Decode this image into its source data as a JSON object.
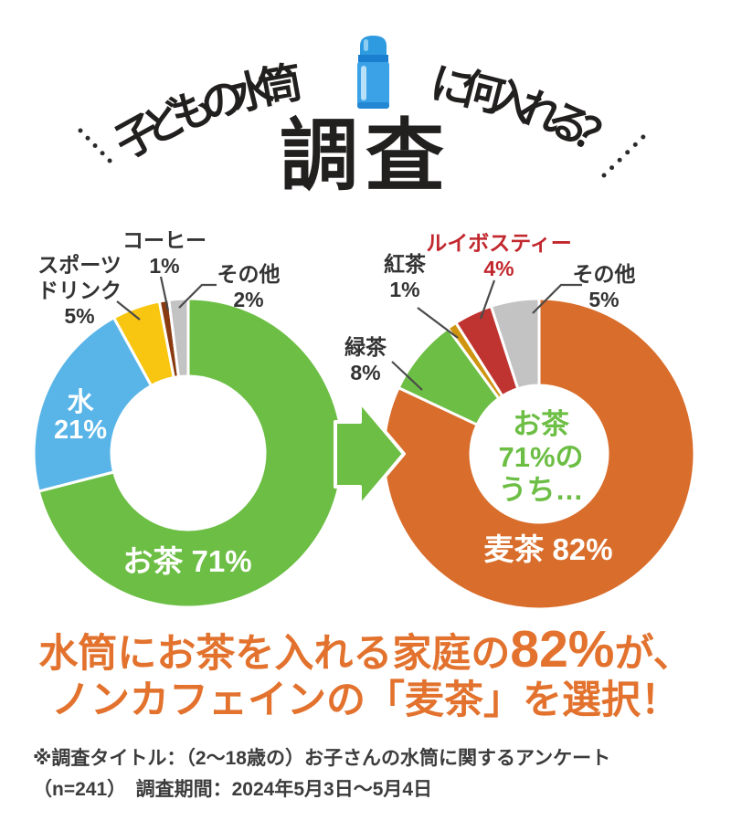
{
  "header": {
    "arc_title_left": "子どもの水筒",
    "arc_title_right": "に何入れる？",
    "bottle_icon": "water-bottle-icon",
    "main_title": "調査"
  },
  "colors": {
    "green": "#6cbe44",
    "blue": "#59b5e8",
    "yellow": "#f8c611",
    "coffee_brown": "#8a3a10",
    "gray": "#c3c3c3",
    "orange": "#d96d2b",
    "gold": "#cf9410",
    "rooibos_red": "#bf3431",
    "rooibos_label": "#c1272d",
    "title_black": "#221f1f",
    "text_dark": "#333333",
    "conclusion_orange": "#e2722d"
  },
  "chart_data": [
    {
      "type": "donut",
      "position": "left",
      "start_angle_deg": 0,
      "direction": "clockwise",
      "series": [
        {
          "id": "tea",
          "label": "お茶",
          "value": 71,
          "display_pct": "71%",
          "display": "お茶 71%",
          "color": "#6cbe44",
          "label_placement": "inside"
        },
        {
          "id": "water",
          "label": "水",
          "value": 21,
          "display_pct": "21%",
          "color": "#59b5e8",
          "label_placement": "inside"
        },
        {
          "id": "sports-drink",
          "label": "スポーツドリンク",
          "label_line1": "スポーツ",
          "label_line2": "ドリンク",
          "value": 5,
          "display_pct": "5%",
          "color": "#f8c611",
          "label_placement": "outside"
        },
        {
          "id": "coffee",
          "label": "コーヒー",
          "value": 1,
          "display_pct": "1%",
          "color": "#8a3a10",
          "label_placement": "outside"
        },
        {
          "id": "other",
          "label": "その他",
          "value": 2,
          "display_pct": "2%",
          "color": "#c3c3c3",
          "label_placement": "outside"
        }
      ]
    },
    {
      "type": "donut",
      "position": "right",
      "start_angle_deg": 0,
      "direction": "clockwise",
      "center_text_lines": [
        "お茶",
        "71%の",
        "うち…"
      ],
      "series": [
        {
          "id": "mugicha",
          "label": "麦茶",
          "value": 82,
          "display_pct": "82%",
          "display": "麦茶 82%",
          "color": "#d96d2b",
          "label_placement": "inside"
        },
        {
          "id": "green-tea",
          "label": "緑茶",
          "value": 8,
          "display_pct": "8%",
          "color": "#6cbe44",
          "label_placement": "outside"
        },
        {
          "id": "black-tea",
          "label": "紅茶",
          "value": 1,
          "display_pct": "1%",
          "color": "#cf9410",
          "label_placement": "outside"
        },
        {
          "id": "rooibos",
          "label": "ルイボスティー",
          "value": 4,
          "display_pct": "4%",
          "color": "#bf3431",
          "label_placement": "outside"
        },
        {
          "id": "other",
          "label": "その他",
          "value": 5,
          "display_pct": "5%",
          "color": "#c3c3c3",
          "label_placement": "outside"
        }
      ]
    }
  ],
  "conclusion": {
    "line1_pre": "水筒にお茶を入れる家庭の",
    "line1_highlight": "82%",
    "line1_post": "が、",
    "line2": "ノンカフェインの「麦茶」を選択！"
  },
  "footnote": {
    "line1": "※調査タイトル：（2～18歳の）お子さんの水筒に関するアンケート",
    "line2": "（n=241）　調査期間：2024年5月3日～5月4日"
  }
}
